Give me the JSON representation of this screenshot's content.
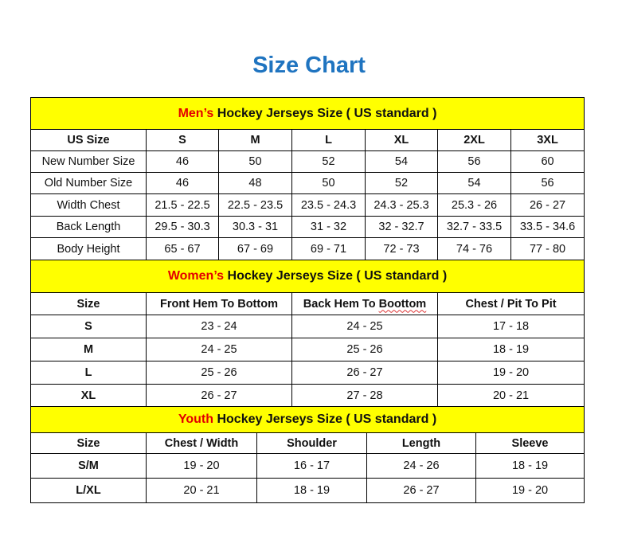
{
  "title": "Size Chart",
  "colors": {
    "title": "#1F74C0",
    "header_bg": "#FFFF00",
    "accent_red": "#E30000"
  },
  "men": {
    "title_prefix": "Men’s",
    "title_rest": " Hockey Jerseys Size ( US standard )",
    "header": [
      "US Size",
      "S",
      "M",
      "L",
      "XL",
      "2XL",
      "3XL"
    ],
    "rows": [
      [
        "New Number Size",
        "46",
        "50",
        "52",
        "54",
        "56",
        "60"
      ],
      [
        "Old Number Size",
        "46",
        "48",
        "50",
        "52",
        "54",
        "56"
      ],
      [
        "Width Chest",
        "21.5 - 22.5",
        "22.5 - 23.5",
        "23.5 - 24.3",
        "24.3 - 25.3",
        "25.3 - 26",
        "26 - 27"
      ],
      [
        "Back Length",
        "29.5 - 30.3",
        "30.3 - 31",
        "31 - 32",
        "32 - 32.7",
        "32.7 - 33.5",
        "33.5 - 34.6"
      ],
      [
        "Body Height",
        "65 - 67",
        "67 - 69",
        "69 - 71",
        "72 - 73",
        "74 - 76",
        "77 - 80"
      ]
    ]
  },
  "women": {
    "title_prefix": "Women’s",
    "title_rest": " Hockey Jerseys Size ( US standard )",
    "header": [
      "Size",
      "Front Hem To Bottom",
      "Back Hem To Boottom",
      "Chest / Pit To Pit"
    ],
    "rows": [
      [
        "S",
        "23 - 24",
        "24 - 25",
        "17 - 18"
      ],
      [
        "M",
        "24 - 25",
        "25 - 26",
        "18 - 19"
      ],
      [
        "L",
        "25 - 26",
        "26 - 27",
        "19 - 20"
      ],
      [
        "XL",
        "26 - 27",
        "27 - 28",
        "20 - 21"
      ]
    ]
  },
  "youth": {
    "title_prefix": "Youth",
    "title_rest": " Hockey Jerseys Size ( US standard )",
    "header": [
      "Size",
      "Chest / Width",
      "Shoulder",
      "Length",
      "Sleeve"
    ],
    "rows": [
      [
        "S/M",
        "19 - 20",
        "16 - 17",
        "24 - 26",
        "18 - 19"
      ],
      [
        "L/XL",
        "20 - 21",
        "18 - 19",
        "26 - 27",
        "19 - 20"
      ]
    ]
  }
}
